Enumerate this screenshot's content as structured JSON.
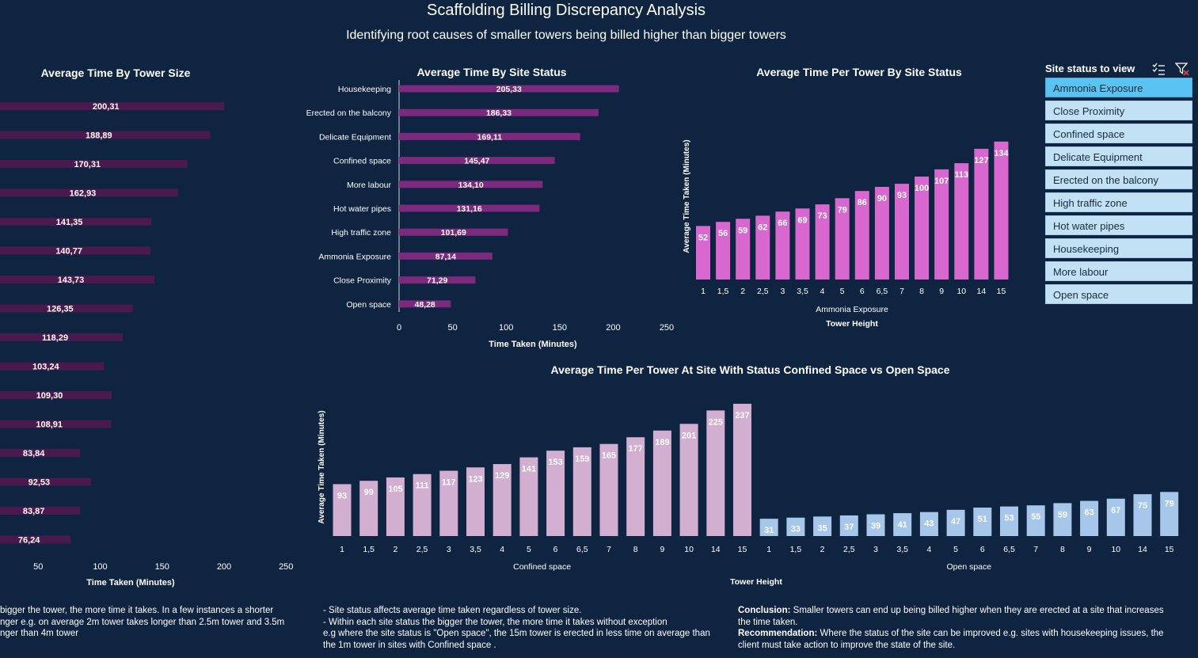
{
  "title": "Scaffolding Billing Discrepancy Analysis",
  "subtitle": "Identifying root causes of smaller towers being billed higher than bigger towers",
  "colors": {
    "background": "#0f2440",
    "tower_size_bar": "#4a1a4e",
    "site_status_bar": "#7c2a7e",
    "ammonia_bar": "#d868cf",
    "confined_bar": "#d2afd0",
    "open_bar": "#a7c7ea",
    "slicer_item": "#c3e1f5",
    "slicer_selected": "#5bc3f2"
  },
  "chart_data": [
    {
      "id": "tower_size",
      "type": "bar",
      "orientation": "horizontal",
      "title": "Average Time By Tower Size",
      "xlabel": "Time Taken (Minutes)",
      "xlim": [
        0,
        250
      ],
      "xticks": [
        "50",
        "100",
        "150",
        "200",
        "250"
      ],
      "values": [
        200.31,
        188.89,
        170.31,
        162.93,
        141.35,
        140.77,
        143.73,
        126.35,
        118.29,
        103.24,
        109.3,
        108.91,
        83.84,
        92.53,
        83.87,
        76.24
      ],
      "labels": [
        "200,31",
        "188,89",
        "170,31",
        "162,93",
        "141,35",
        "140,77",
        "143,73",
        "126,35",
        "118,29",
        "103,24",
        "109,30",
        "108,91",
        "83,84",
        "92,53",
        "83,87",
        "76,24"
      ]
    },
    {
      "id": "site_status",
      "type": "bar",
      "orientation": "horizontal",
      "title": "Average Time By Site Status",
      "xlabel": "Time Taken (Minutes)",
      "xlim": [
        0,
        250
      ],
      "xticks": [
        "0",
        "50",
        "100",
        "150",
        "200",
        "250"
      ],
      "categories": [
        "Housekeeping",
        "Erected on the balcony",
        "Delicate Equipment",
        "Confined space",
        "More labour",
        "Hot water pipes",
        "High traffic zone",
        "Ammonia Exposure",
        "Close Proximity",
        "Open space"
      ],
      "values": [
        205.33,
        186.33,
        169.11,
        145.47,
        134.1,
        131.16,
        101.69,
        87.14,
        71.29,
        48.28
      ],
      "labels": [
        "205,33",
        "186,33",
        "169,11",
        "145,47",
        "134,10",
        "131,16",
        "101,69",
        "87,14",
        "71,29",
        "48,28"
      ]
    },
    {
      "id": "per_tower_status",
      "type": "bar",
      "title": "Average Time Per Tower By Site Status",
      "ylabel": "Average Time Taken (Minutes)",
      "xlabel": "Tower Height",
      "group": "Ammonia Exposure",
      "ylim": [
        0,
        140
      ],
      "categories": [
        "1",
        "1,5",
        "2",
        "2,5",
        "3",
        "3,5",
        "4",
        "5",
        "6",
        "6,5",
        "7",
        "8",
        "9",
        "10",
        "14",
        "15"
      ],
      "values": [
        52,
        56,
        59,
        62,
        66,
        69,
        73,
        79,
        86,
        90,
        93,
        100,
        107,
        113,
        127,
        134
      ]
    },
    {
      "id": "confined_vs_open",
      "type": "bar",
      "title": "Average Time Per Tower At Site With Status Confined Space vs Open Space",
      "ylabel": "Average Time Taken (Minutes)",
      "xlabel": "Tower Height",
      "ylim": [
        0,
        245
      ],
      "categories": [
        "1",
        "1,5",
        "2",
        "2,5",
        "3",
        "3,5",
        "4",
        "5",
        "6",
        "6,5",
        "7",
        "8",
        "9",
        "10",
        "14",
        "15"
      ],
      "series": [
        {
          "name": "Confined space",
          "values": [
            93,
            99,
            105,
            111,
            117,
            123,
            129,
            141,
            153,
            159,
            165,
            177,
            189,
            201,
            225,
            237
          ]
        },
        {
          "name": "Open space",
          "values": [
            31,
            33,
            35,
            37,
            39,
            41,
            43,
            47,
            51,
            53,
            55,
            59,
            63,
            67,
            75,
            79
          ]
        }
      ]
    }
  ],
  "notes": {
    "left": [
      "bigger the tower, the more time it takes. In a few instances a shorter",
      "nger e.g. on average 2m tower takes longer than 2.5m tower and 3.5m",
      "nger than 4m tower"
    ],
    "middle": [
      "- Site status affects average time taken regardless of tower size.",
      "- Within each site status the bigger the tower, the more time it takes without exception",
      "e.g where the site status is \"Open space\", the 15m tower is erected in less time on average than",
      "the 1m tower in sites with Confined space ."
    ],
    "conclusion_label": "Conclusion:",
    "conclusion_text": " Smaller towers can end up being billed higher when they are erected at a site that increases",
    "conclusion_text2": "the time taken.",
    "recommendation_label": "Recommendation:",
    "recommendation_text": " Where the status of the site can be improved e.g. sites with housekeeping issues, the",
    "recommendation_text2": "client must take action to improve the state of the site."
  },
  "slicer": {
    "title": "Site status to view",
    "icons": [
      "multi-select-icon",
      "clear-filter-icon"
    ],
    "items": [
      {
        "label": "Ammonia Exposure",
        "selected": true
      },
      {
        "label": "Close Proximity",
        "selected": false
      },
      {
        "label": "Confined space",
        "selected": false
      },
      {
        "label": "Delicate Equipment",
        "selected": false
      },
      {
        "label": "Erected on the balcony",
        "selected": false
      },
      {
        "label": "High traffic zone",
        "selected": false
      },
      {
        "label": "Hot water pipes",
        "selected": false
      },
      {
        "label": "Housekeeping",
        "selected": false
      },
      {
        "label": "More labour",
        "selected": false
      },
      {
        "label": "Open space",
        "selected": false
      }
    ]
  }
}
